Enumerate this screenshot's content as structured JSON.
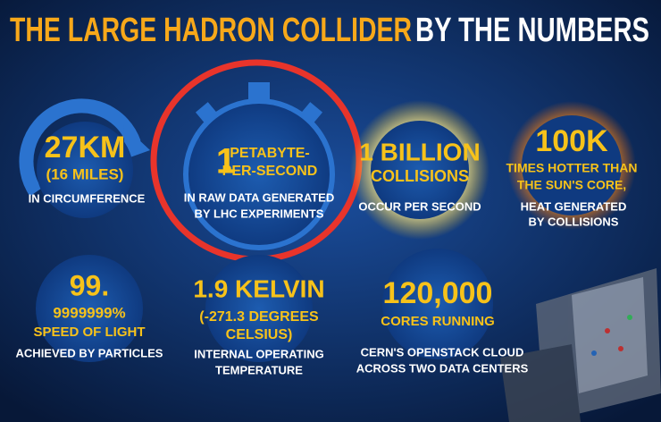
{
  "title": {
    "highlight": "THE LARGE HADRON COLLIDER",
    "rest": "BY THE NUMBERS"
  },
  "stats": [
    {
      "figure": [
        "27KM",
        "(16 MILES)"
      ],
      "caption": [
        "IN CIRCUMFERENCE"
      ]
    },
    {
      "figure": [
        "1",
        "PETABYTE-",
        "PER-SECOND"
      ],
      "caption": [
        "IN RAW DATA GENERATED",
        "BY LHC EXPERIMENTS"
      ]
    },
    {
      "figure": [
        "1 BILLION",
        "COLLISIONS"
      ],
      "caption": [
        "OCCUR PER SECOND"
      ]
    },
    {
      "figure": [
        "100K",
        "TIMES HOTTER THAN",
        "THE SUN'S CORE,"
      ],
      "caption": [
        "HEAT GENERATED",
        "BY COLLISIONS"
      ]
    },
    {
      "figure": [
        "99.",
        "9999999%",
        "SPEED OF LIGHT"
      ],
      "caption": [
        "ACHIEVED BY PARTICLES"
      ]
    },
    {
      "figure": [
        "1.9 KELVIN",
        "(-271.3 DEGREES",
        "CELSIUS)"
      ],
      "caption": [
        "INTERNAL OPERATING",
        "TEMPERATURE"
      ]
    },
    {
      "figure": [
        "120,000",
        "CORES RUNNING"
      ],
      "caption": [
        "CERN'S OPENSTACK CLOUD",
        "ACROSS TWO DATA CENTERS"
      ]
    }
  ]
}
